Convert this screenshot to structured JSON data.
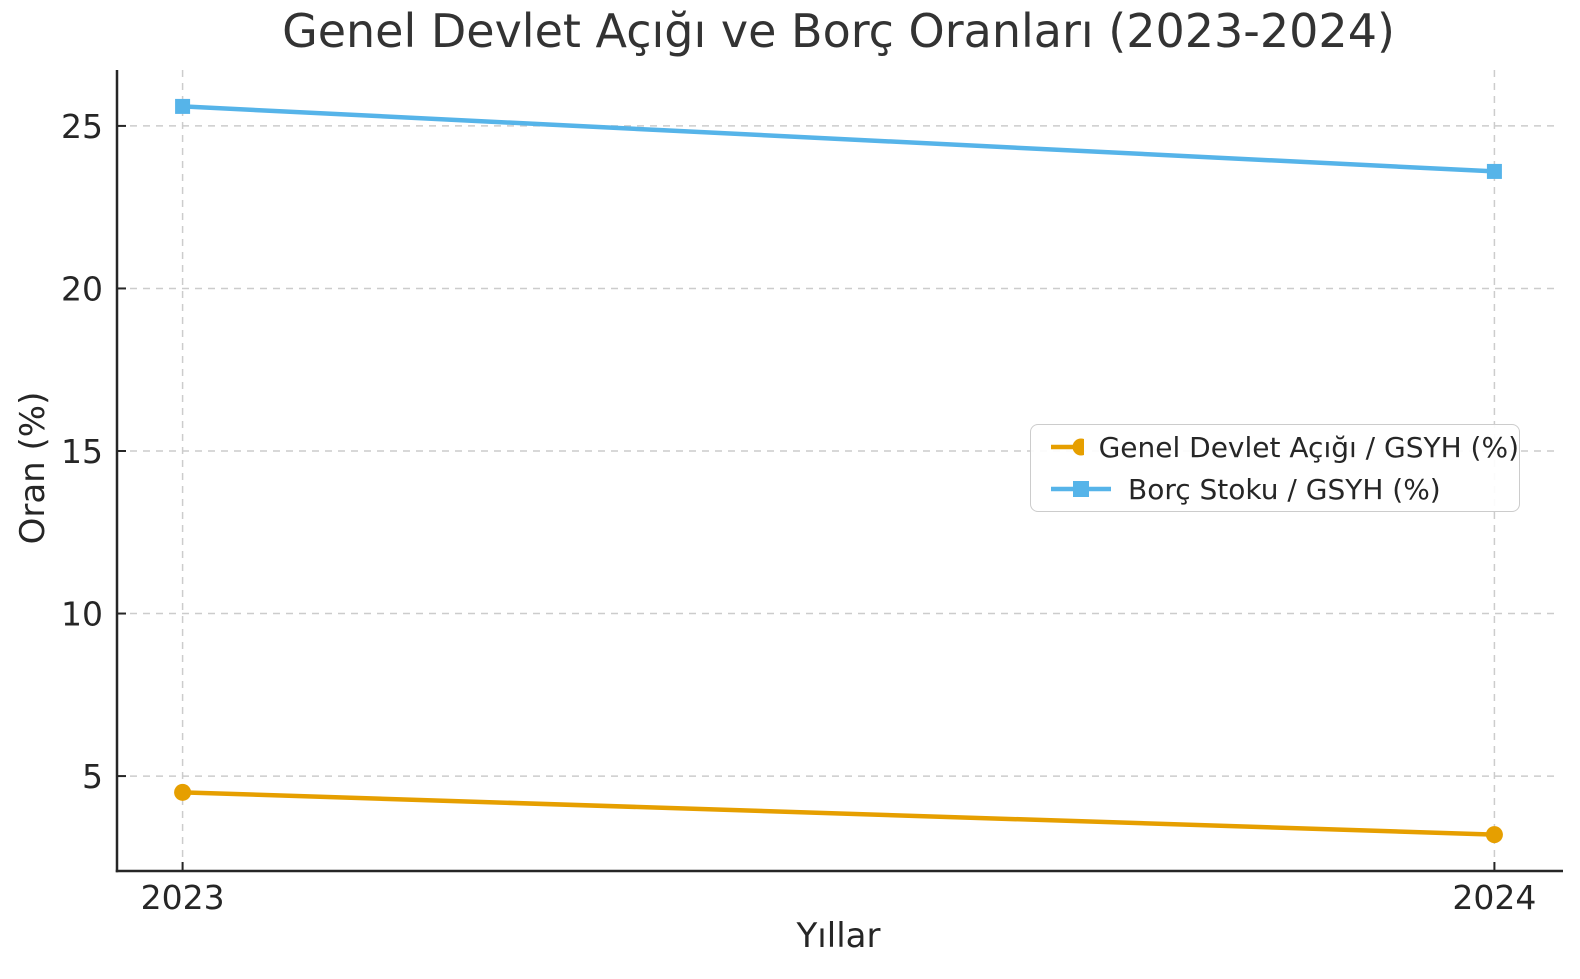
{
  "chart_data": {
    "type": "line",
    "title": "Genel Devlet Açığı ve Borç Oranları (2023-2024)",
    "xlabel": "Yıllar",
    "ylabel": "Oran (%)",
    "categories": [
      "2023",
      "2024"
    ],
    "x": [
      2023,
      2024
    ],
    "series": [
      {
        "name": "Genel Devlet Açığı / GSYH (%)",
        "values": [
          4.5,
          3.2
        ],
        "color": "#E69F00",
        "marker": "circle"
      },
      {
        "name": "Borç Stoku / GSYH (%)",
        "values": [
          25.6,
          23.6
        ],
        "color": "#56B4E9",
        "marker": "square"
      }
    ],
    "xlim": [
      2022.95,
      2024.05
    ],
    "ylim": [
      2.08,
      26.72
    ],
    "yticks": [
      5,
      10,
      15,
      20,
      25
    ],
    "grid": true,
    "grid_style": "dashed",
    "grid_color": "#cccccc",
    "axis_color": "#262626",
    "tick_label_color": "#262626",
    "title_color": "#333333",
    "legend_position": "center right",
    "line_width": 4.5,
    "background": "#ffffff"
  }
}
